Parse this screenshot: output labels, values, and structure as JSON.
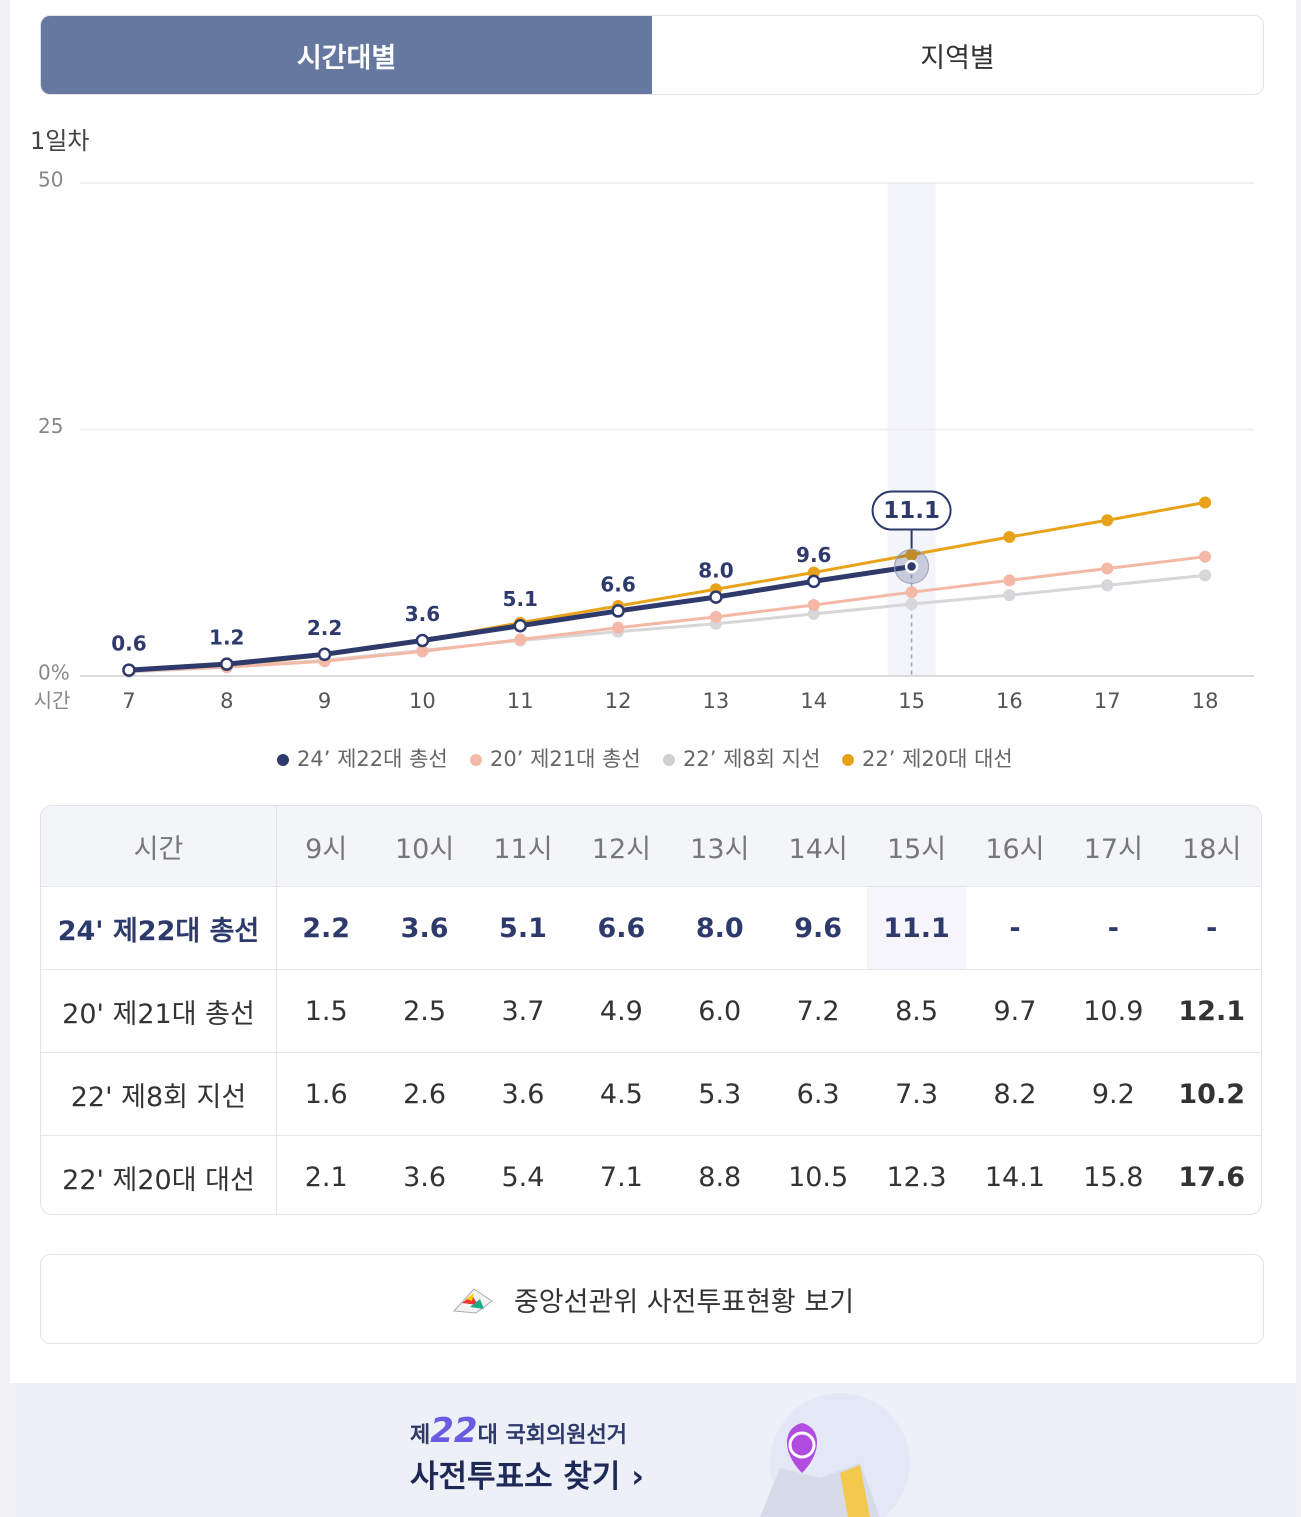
{
  "tabs": [
    "시간대별",
    "지역별"
  ],
  "chart_data": {
    "type": "line",
    "title": "1일차",
    "x_label": "시간",
    "x": [
      7,
      8,
      9,
      10,
      11,
      12,
      13,
      14,
      15,
      16,
      17,
      18
    ],
    "xlim": [
      6.5,
      18.5
    ],
    "xticks": [
      7,
      8,
      9,
      10,
      11,
      12,
      13,
      14,
      15,
      16,
      17,
      18
    ],
    "ylim": [
      0,
      50
    ],
    "yticks": [
      {
        "value": 0,
        "label": "0%"
      },
      25,
      50
    ],
    "grid": true,
    "series": [
      {
        "name": "24’ 제22대 총선",
        "color": "#2d3a6b",
        "values": [
          0.6,
          1.2,
          2.2,
          3.6,
          5.1,
          6.6,
          8.0,
          9.6,
          11.1,
          null,
          null,
          null
        ],
        "value_labels": [
          "0.6",
          "1.2",
          "2.2",
          "3.6",
          "5.1",
          "6.6",
          "8.0",
          "9.6",
          "11.1",
          null,
          null,
          null
        ]
      },
      {
        "name": "20’ 제21대 총선",
        "color": "#f4b9a6",
        "values": [
          0.5,
          0.9,
          1.5,
          2.5,
          3.7,
          4.9,
          6.0,
          7.2,
          8.5,
          9.7,
          10.9,
          12.1
        ]
      },
      {
        "name": "22’ 제8회 지선",
        "color": "#d7d7d9",
        "values": [
          0.4,
          0.9,
          1.6,
          2.6,
          3.6,
          4.5,
          5.3,
          6.3,
          7.3,
          8.2,
          9.2,
          10.2
        ]
      },
      {
        "name": "22’ 제20대 대선",
        "color": "#e8a31a",
        "values": [
          0.5,
          1.0,
          2.1,
          3.6,
          5.4,
          7.1,
          8.8,
          10.5,
          12.3,
          14.1,
          15.8,
          17.6
        ]
      }
    ]
  },
  "table": {
    "header": [
      "시간",
      "9시",
      "10시",
      "11시",
      "12시",
      "13시",
      "14시",
      "15시",
      "16시",
      "17시",
      "18시"
    ],
    "rows": [
      [
        "24' 제22대 총선",
        "2.2",
        "3.6",
        "5.1",
        "6.6",
        "8.0",
        "9.6",
        "11.1",
        "-",
        "-",
        "-"
      ],
      [
        "20' 제21대 총선",
        "1.5",
        "2.5",
        "3.7",
        "4.9",
        "6.0",
        "7.2",
        "8.5",
        "9.7",
        "10.9",
        "12.1"
      ],
      [
        "22' 제8회 지선",
        "1.6",
        "2.6",
        "3.6",
        "4.5",
        "5.3",
        "6.3",
        "7.3",
        "8.2",
        "9.2",
        "10.2"
      ],
      [
        "22' 제20대 대선",
        "2.1",
        "3.6",
        "5.4",
        "7.1",
        "8.8",
        "10.5",
        "12.3",
        "14.1",
        "15.8",
        "17.6"
      ]
    ]
  },
  "button": "중앙선관위 사전투표현황 보기",
  "banner": {
    "prefix": "제",
    "number": "22",
    "suffix": "대",
    "subtitle": "국회의원선거",
    "title": "사전투표소 찾기"
  }
}
